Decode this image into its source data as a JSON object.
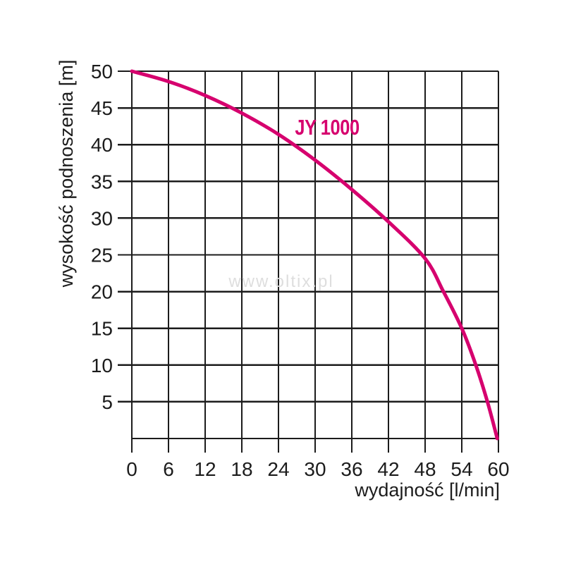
{
  "watermark": "www.oltix.pl",
  "colors": {
    "curve": "#d6006e",
    "grid": "#1c1c1c",
    "text": "#1c1c1c",
    "watermark": "#dedede",
    "background": "#ffffff"
  },
  "chart_data": {
    "type": "line",
    "series_label": "JY 1000",
    "xlabel": "wydajność [l/min]",
    "ylabel": "wysokość podnoszenia [m]",
    "xlim": [
      0,
      60
    ],
    "ylim": [
      0,
      50
    ],
    "x_ticks": [
      0,
      6,
      12,
      18,
      24,
      30,
      36,
      42,
      48,
      54,
      60
    ],
    "y_ticks": [
      5,
      10,
      15,
      20,
      25,
      30,
      35,
      40,
      45,
      50
    ],
    "grid": true,
    "legend_position": "inline-label",
    "series": [
      {
        "name": "JY 1000",
        "color": "#d6006e",
        "points": [
          [
            0,
            50
          ],
          [
            6,
            48.6
          ],
          [
            12,
            46.7
          ],
          [
            18,
            44.3
          ],
          [
            24,
            41.4
          ],
          [
            30,
            37.9
          ],
          [
            36,
            33.9
          ],
          [
            42,
            29.5
          ],
          [
            48,
            24.5
          ],
          [
            51,
            20
          ],
          [
            54,
            15
          ],
          [
            56.3,
            10
          ],
          [
            58.2,
            5
          ],
          [
            59.8,
            0
          ]
        ]
      }
    ]
  }
}
